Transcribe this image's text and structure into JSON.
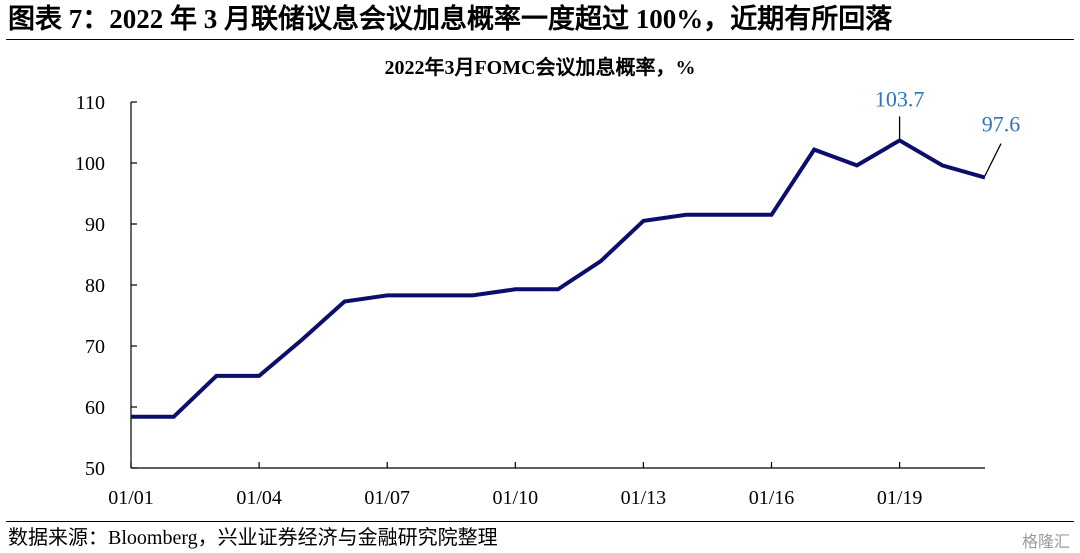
{
  "figure": {
    "title": "图表 7：2022 年 3 月联储议息会议加息概率一度超过 100%，近期有所回落",
    "source": "数据来源：Bloomberg，兴业证券经济与金融研究院整理",
    "watermark": "格隆汇"
  },
  "chart_data": {
    "type": "line",
    "title": "2022年3月FOMC会议加息概率，%",
    "xlabel": "",
    "ylabel": "",
    "ylim": [
      50,
      110
    ],
    "yticks": [
      50,
      60,
      70,
      80,
      90,
      100,
      110
    ],
    "x_tick_labels": [
      "01/01",
      "01/04",
      "01/07",
      "01/10",
      "01/13",
      "01/16",
      "01/19"
    ],
    "x_tick_index": [
      0,
      3,
      6,
      9,
      12,
      15,
      18
    ],
    "grid": false,
    "line_color": "#0b0f6b",
    "annotation_color": "#2e75b6",
    "series": [
      {
        "values": [
          58.4,
          58.4,
          65.1,
          65.1,
          71.0,
          77.3,
          78.3,
          78.3,
          78.3,
          79.3,
          79.3,
          83.9,
          90.5,
          91.5,
          91.5,
          91.5,
          102.2,
          99.6,
          103.7,
          99.6,
          97.6
        ]
      }
    ],
    "annotations": [
      {
        "index": 18,
        "label": "103.7"
      },
      {
        "index": 20,
        "label": "97.6"
      }
    ]
  }
}
